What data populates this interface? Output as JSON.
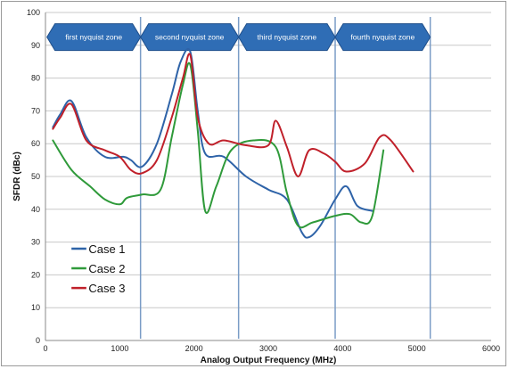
{
  "chart_data": {
    "type": "line",
    "title": "",
    "xlabel": "Analog Output Frequency (MHz)",
    "ylabel": "SFDR (dBc)",
    "xlim": [
      0,
      6000
    ],
    "ylim": [
      0,
      100
    ],
    "x_ticks": [
      "0",
      "1000",
      "2000",
      "3000",
      "4000",
      "5000",
      "6000"
    ],
    "y_ticks": [
      "0",
      "10",
      "20",
      "30",
      "40",
      "50",
      "60",
      "70",
      "80",
      "90",
      "100"
    ],
    "x_tick_values": [
      0,
      1000,
      2000,
      3000,
      4000,
      5000,
      6000
    ],
    "y_tick_values": [
      0,
      10,
      20,
      30,
      40,
      50,
      60,
      70,
      80,
      90,
      100
    ],
    "grid": "horizontal",
    "legend_position": "bottom-left",
    "zone_boundaries": [
      1280,
      2600,
      3900,
      5180
    ],
    "zones": [
      {
        "label": "first nyquist zone",
        "from": 20,
        "to": 1280
      },
      {
        "label": "second nyquist zone",
        "from": 1280,
        "to": 2600
      },
      {
        "label": "third nyquist zone",
        "from": 2600,
        "to": 3900
      },
      {
        "label": "fourth nyquist zone",
        "from": 3900,
        "to": 5180
      }
    ],
    "series": [
      {
        "name": "Case 1",
        "color": "#2e63a8",
        "x": [
          100,
          200,
          350,
          550,
          800,
          1050,
          1150,
          1300,
          1500,
          1700,
          1820,
          1950,
          2050,
          2150,
          2400,
          2700,
          3000,
          3250,
          3450,
          3550,
          3700,
          3900,
          4050,
          4200,
          4400
        ],
        "y": [
          65,
          69,
          73,
          62,
          56,
          56,
          55,
          53,
          60,
          75,
          85,
          88,
          70,
          57,
          56,
          50,
          46,
          43,
          33,
          31.5,
          35,
          43,
          47,
          41,
          39.5
        ]
      },
      {
        "name": "Case 2",
        "color": "#2f9a3a",
        "x": [
          100,
          350,
          600,
          800,
          1000,
          1100,
          1300,
          1550,
          1700,
          1850,
          1950,
          2050,
          2150,
          2300,
          2500,
          2800,
          3100,
          3250,
          3400,
          3600,
          3900,
          4100,
          4250,
          4400,
          4550
        ],
        "y": [
          61,
          52,
          47,
          43,
          41.5,
          43.5,
          44.5,
          46,
          62,
          78,
          84,
          64,
          39.5,
          47,
          58,
          61,
          59,
          45,
          35,
          36,
          38,
          38.5,
          36,
          38,
          58
        ]
      },
      {
        "name": "Case 3",
        "color": "#c0202a",
        "x": [
          100,
          200,
          350,
          550,
          800,
          1000,
          1150,
          1300,
          1500,
          1700,
          1850,
          1950,
          2050,
          2200,
          2400,
          2700,
          3000,
          3100,
          3250,
          3400,
          3550,
          3750,
          3900,
          4050,
          4300,
          4500,
          4650,
          4950
        ],
        "y": [
          64.5,
          68,
          72,
          61,
          58,
          56,
          52,
          51,
          55,
          68,
          80,
          87,
          68,
          60,
          61,
          59.5,
          59.5,
          67,
          59,
          50,
          58,
          57,
          54.5,
          51.5,
          54,
          62,
          61,
          51.5
        ]
      }
    ]
  }
}
